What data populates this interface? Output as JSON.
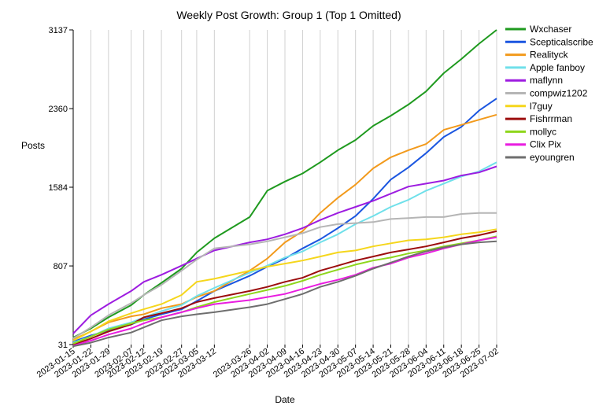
{
  "chart_data": {
    "type": "line",
    "title": "Weekly Post Growth: Group 1 (Top 1 Omitted)",
    "xlabel": "Date",
    "ylabel": "Posts",
    "ylim": [
      31,
      3137
    ],
    "yticks": [
      31,
      807,
      1584,
      2360,
      3137
    ],
    "grid": "vertical",
    "legend_position": "right",
    "x": [
      "2023-01-15",
      "2023-01-22",
      "2023-01-29",
      "2023-02-07",
      "2023-02-12",
      "2023-02-19",
      "2023-02-27",
      "2023-03-05",
      "2023-03-12",
      "2023-03-26",
      "2023-04-02",
      "2023-04-09",
      "2023-04-16",
      "2023-04-23",
      "2023-04-30",
      "2023-05-07",
      "2023-05-14",
      "2023-05-21",
      "2023-05-28",
      "2023-06-04",
      "2023-06-11",
      "2023-06-18",
      "2023-06-25",
      "2023-07-02"
    ],
    "series": [
      {
        "name": "Wxchaser",
        "color": "#1f9a1f",
        "values": [
          100,
          190,
          300,
          420,
          520,
          640,
          780,
          940,
          1080,
          1290,
          1550,
          1640,
          1720,
          1830,
          1950,
          2050,
          2190,
          2290,
          2400,
          2530,
          2710,
          2850,
          3000,
          3137
        ]
      },
      {
        "name": "Scepticalscribe",
        "color": "#1b56e0",
        "values": [
          60,
          120,
          170,
          230,
          280,
          330,
          380,
          460,
          560,
          710,
          800,
          880,
          980,
          1070,
          1180,
          1300,
          1470,
          1660,
          1780,
          1920,
          2080,
          2180,
          2340,
          2460
        ]
      },
      {
        "name": "Realityck",
        "color": "#f29a1c",
        "values": [
          80,
          160,
          250,
          310,
          330,
          390,
          430,
          500,
          560,
          760,
          880,
          1040,
          1150,
          1330,
          1480,
          1610,
          1770,
          1880,
          1950,
          2010,
          2150,
          2200,
          2250,
          2300
        ]
      },
      {
        "name": "Apple fanboy",
        "color": "#6fe0ea",
        "values": [
          50,
          110,
          190,
          250,
          300,
          360,
          420,
          510,
          590,
          740,
          810,
          890,
          950,
          1040,
          1120,
          1220,
          1300,
          1390,
          1460,
          1550,
          1620,
          1690,
          1740,
          1830
        ]
      },
      {
        "name": "maflynn",
        "color": "#9d1ce0",
        "values": [
          140,
          320,
          430,
          560,
          650,
          720,
          810,
          880,
          960,
          1040,
          1070,
          1120,
          1180,
          1260,
          1330,
          1390,
          1450,
          1520,
          1590,
          1620,
          1650,
          1700,
          1730,
          1790
        ]
      },
      {
        "name": "compwiz1202",
        "color": "#b5b5b5",
        "values": [
          90,
          200,
          320,
          440,
          520,
          620,
          760,
          870,
          980,
          1020,
          1050,
          1090,
          1130,
          1190,
          1220,
          1230,
          1240,
          1270,
          1280,
          1290,
          1290,
          1320,
          1330,
          1330
        ]
      },
      {
        "name": "l7guy",
        "color": "#f5d61c",
        "values": [
          70,
          160,
          260,
          340,
          380,
          430,
          520,
          650,
          680,
          760,
          800,
          830,
          860,
          900,
          940,
          960,
          1000,
          1030,
          1060,
          1070,
          1090,
          1120,
          1140,
          1170
        ]
      },
      {
        "name": "Fishrrman",
        "color": "#9c0e0e",
        "values": [
          30,
          90,
          160,
          230,
          300,
          340,
          390,
          450,
          490,
          560,
          600,
          650,
          690,
          760,
          810,
          860,
          900,
          940,
          970,
          1000,
          1040,
          1080,
          1110,
          1150
        ]
      },
      {
        "name": "mollyc",
        "color": "#8ed61c",
        "values": [
          40,
          110,
          180,
          240,
          270,
          300,
          350,
          400,
          450,
          530,
          570,
          610,
          660,
          720,
          770,
          820,
          860,
          890,
          930,
          960,
          1000,
          1030,
          1060,
          1100
        ]
      },
      {
        "name": "Clix Pix",
        "color": "#e91ce0",
        "values": [
          20,
          70,
          130,
          190,
          240,
          300,
          350,
          390,
          430,
          470,
          500,
          530,
          580,
          630,
          670,
          720,
          790,
          830,
          890,
          930,
          980,
          1020,
          1060,
          1090
        ]
      },
      {
        "name": "eyoungren",
        "color": "#6e6e6e",
        "values": [
          15,
          50,
          100,
          150,
          200,
          270,
          310,
          330,
          350,
          400,
          430,
          480,
          530,
          600,
          650,
          710,
          780,
          840,
          900,
          950,
          990,
          1020,
          1040,
          1050
        ]
      }
    ]
  }
}
